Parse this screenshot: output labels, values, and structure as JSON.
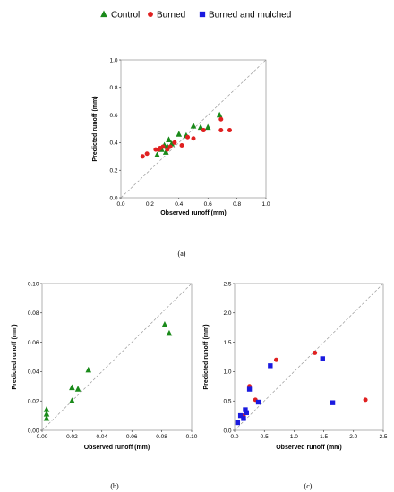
{
  "legend": [
    {
      "name": "Control",
      "marker": "triangle",
      "color": "#1a8a1a"
    },
    {
      "name": "Burned",
      "marker": "circle",
      "color": "#e02020"
    },
    {
      "name": "Burned and mulched",
      "marker": "square",
      "color": "#1a1adf"
    }
  ],
  "chart_data": [
    {
      "type": "scatter",
      "panel_label": "(a)",
      "xlabel": "Observed runoff (mm)",
      "ylabel": "Predicted runoff (mm)",
      "xlim": [
        0,
        1
      ],
      "ylim": [
        0,
        1
      ],
      "xticks": [
        0,
        0.2,
        0.4,
        0.6,
        0.8,
        1.0
      ],
      "yticks": [
        0,
        0.2,
        0.4,
        0.6,
        0.8,
        1.0
      ],
      "xtick_labels": [
        "0.0",
        "0.2",
        "0.4",
        "0.6",
        "0.8",
        "1.0"
      ],
      "ytick_labels": [
        "0.0",
        "0.2",
        "0.4",
        "0.6",
        "0.8",
        "1.0"
      ],
      "identity_line": true,
      "series": [
        {
          "name": "Control",
          "points": [
            [
              0.25,
              0.31
            ],
            [
              0.28,
              0.35
            ],
            [
              0.3,
              0.38
            ],
            [
              0.31,
              0.33
            ],
            [
              0.32,
              0.37
            ],
            [
              0.33,
              0.42
            ],
            [
              0.35,
              0.39
            ],
            [
              0.4,
              0.46
            ],
            [
              0.45,
              0.45
            ],
            [
              0.5,
              0.52
            ],
            [
              0.55,
              0.51
            ],
            [
              0.6,
              0.51
            ],
            [
              0.68,
              0.6
            ]
          ]
        },
        {
          "name": "Burned",
          "points": [
            [
              0.15,
              0.3
            ],
            [
              0.18,
              0.32
            ],
            [
              0.24,
              0.35
            ],
            [
              0.26,
              0.35
            ],
            [
              0.27,
              0.36
            ],
            [
              0.29,
              0.37
            ],
            [
              0.32,
              0.35
            ],
            [
              0.34,
              0.37
            ],
            [
              0.37,
              0.4
            ],
            [
              0.42,
              0.38
            ],
            [
              0.46,
              0.44
            ],
            [
              0.5,
              0.43
            ],
            [
              0.57,
              0.49
            ],
            [
              0.69,
              0.49
            ],
            [
              0.69,
              0.57
            ],
            [
              0.75,
              0.49
            ]
          ]
        }
      ]
    },
    {
      "type": "scatter",
      "panel_label": "(b)",
      "xlabel": "Observed runoff (mm)",
      "ylabel": "Predicted runoff (mm)",
      "xlim": [
        0,
        0.1
      ],
      "ylim": [
        0,
        0.1
      ],
      "xticks": [
        0,
        0.02,
        0.04,
        0.06,
        0.08,
        0.1
      ],
      "yticks": [
        0,
        0.02,
        0.04,
        0.06,
        0.08,
        0.1
      ],
      "xtick_labels": [
        "0.00",
        "0.02",
        "0.04",
        "0.06",
        "0.08",
        "0.10"
      ],
      "ytick_labels": [
        "0.00",
        "0.02",
        "0.04",
        "0.06",
        "0.08",
        "0.10"
      ],
      "identity_line": true,
      "series": [
        {
          "name": "Control",
          "points": [
            [
              0.003,
              0.014
            ],
            [
              0.003,
              0.011
            ],
            [
              0.003,
              0.008
            ],
            [
              0.02,
              0.02
            ],
            [
              0.02,
              0.029
            ],
            [
              0.024,
              0.028
            ],
            [
              0.031,
              0.041
            ],
            [
              0.082,
              0.072
            ],
            [
              0.085,
              0.066
            ]
          ]
        }
      ]
    },
    {
      "type": "scatter",
      "panel_label": "(c)",
      "xlabel": "Observed runoff (mm)",
      "ylabel": "Predicted runoff (mm)",
      "xlim": [
        0,
        2.5
      ],
      "ylim": [
        0,
        2.5
      ],
      "xticks": [
        0,
        0.5,
        1.0,
        1.5,
        2.0,
        2.5
      ],
      "yticks": [
        0,
        0.5,
        1.0,
        1.5,
        2.0,
        2.5
      ],
      "xtick_labels": [
        "0.0",
        "0.5",
        "1.0",
        "1.5",
        "2.0",
        "2.5"
      ],
      "ytick_labels": [
        "0.0",
        "0.5",
        "1.0",
        "1.5",
        "2.0",
        "2.5"
      ],
      "identity_line": true,
      "series": [
        {
          "name": "Burned",
          "points": [
            [
              0.15,
              0.25
            ],
            [
              0.2,
              0.3
            ],
            [
              0.25,
              0.75
            ],
            [
              0.35,
              0.52
            ],
            [
              0.7,
              1.2
            ],
            [
              1.35,
              1.32
            ],
            [
              2.2,
              0.52
            ]
          ]
        },
        {
          "name": "Burned and mulched",
          "points": [
            [
              0.05,
              0.13
            ],
            [
              0.1,
              0.25
            ],
            [
              0.15,
              0.2
            ],
            [
              0.18,
              0.35
            ],
            [
              0.2,
              0.3
            ],
            [
              0.25,
              0.7
            ],
            [
              0.4,
              0.48
            ],
            [
              0.6,
              1.1
            ],
            [
              1.48,
              1.22
            ],
            [
              1.65,
              0.47
            ]
          ]
        }
      ]
    }
  ]
}
